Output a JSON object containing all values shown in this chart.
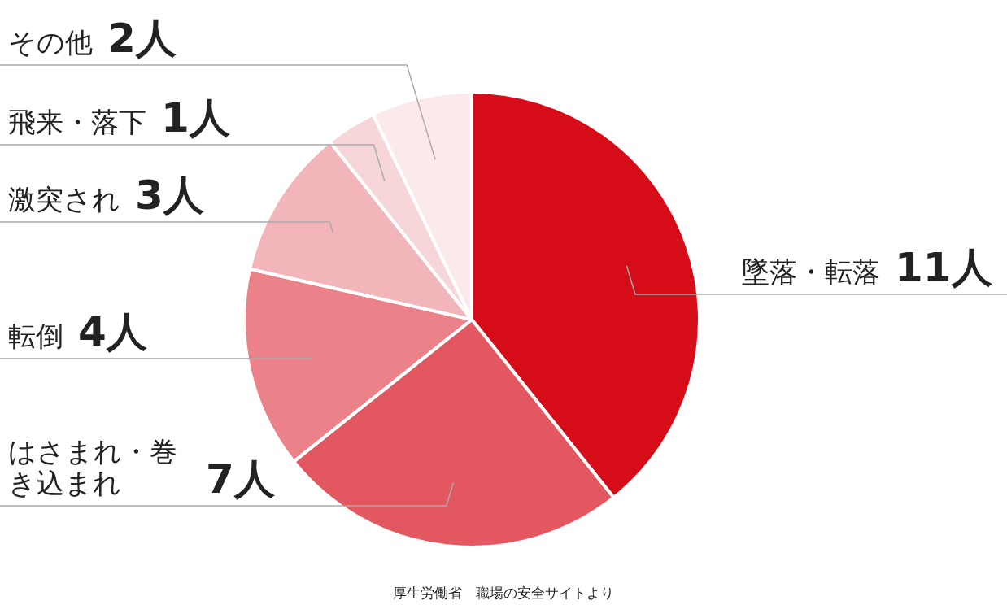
{
  "chart_data": {
    "type": "pie",
    "categories": [
      "墜落・転落",
      "はさまれ・巻き込まれ",
      "転倒",
      "激突され",
      "飛来・落下",
      "その他"
    ],
    "values": [
      11,
      7,
      4,
      3,
      1,
      2
    ],
    "colors": [
      "#d70c19",
      "#e35760",
      "#eb8289",
      "#f2b5ba",
      "#f6d6d9",
      "#fbe9eb"
    ],
    "value_labels": [
      "11人",
      "7人",
      "4人",
      "3人",
      "1人",
      "2人"
    ],
    "annotations": [
      "厚生労働省　職場の安全サイトより"
    ]
  }
}
